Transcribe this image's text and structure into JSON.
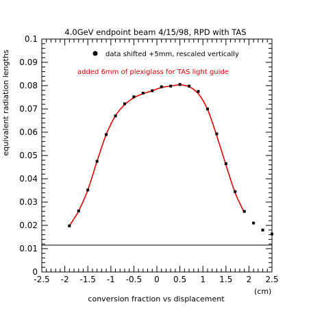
{
  "chart_data": {
    "type": "scatter",
    "title": "4.0GeV endpoint beam 4/15/98, RPD with TAS",
    "xlabel": "conversion fraction vs displacement",
    "xunit": "(cm)",
    "ylabel": "equivalent radiation lengths",
    "xlim": [
      -2.5,
      2.5
    ],
    "ylim": [
      0,
      0.1
    ],
    "x_ticks": [
      "-2.5",
      "-2",
      "-1.5",
      "-1",
      "-0.5",
      "0",
      "0.5",
      "1",
      "1.5",
      "2",
      "2.5"
    ],
    "y_ticks": [
      "0",
      "0.01",
      "0.02",
      "0.03",
      "0.04",
      "0.05",
      "0.06",
      "0.07",
      "0.08",
      "0.09",
      "0.1"
    ],
    "legend": {
      "label": "data shifted +5mm, rescaled vertically",
      "position": "top-right"
    },
    "annotation": "added 6mm of plexiglass for TAS light guide",
    "reference_line_y": 0.0115,
    "colors": {
      "data": "#000000",
      "fit": "#e00000",
      "axis": "#000000"
    },
    "series": [
      {
        "style": "markers",
        "x": [
          -1.9,
          -1.7,
          -1.5,
          -1.3,
          -1.1,
          -0.9,
          -0.7,
          -0.5,
          -0.3,
          -0.1,
          0.1,
          0.3,
          0.5,
          0.7,
          0.9,
          1.1,
          1.3,
          1.5,
          1.7,
          1.9,
          2.1,
          2.3,
          2.5
        ],
        "y": [
          0.0198,
          0.0262,
          0.0352,
          0.0475,
          0.059,
          0.067,
          0.0722,
          0.0752,
          0.0768,
          0.0778,
          0.0795,
          0.0798,
          0.0805,
          0.0798,
          0.0775,
          0.07,
          0.0593,
          0.0465,
          0.0345,
          0.026,
          0.021,
          0.018,
          0.0163
        ]
      },
      {
        "style": "line",
        "x": [
          -1.9,
          -1.7,
          -1.5,
          -1.3,
          -1.1,
          -0.9,
          -0.7,
          -0.5,
          -0.3,
          -0.1,
          0.1,
          0.3,
          0.5,
          0.7,
          0.9,
          1.1,
          1.3,
          1.5,
          1.7,
          1.9
        ],
        "y": [
          0.0198,
          0.0262,
          0.0352,
          0.0475,
          0.059,
          0.067,
          0.0718,
          0.0748,
          0.0765,
          0.0778,
          0.0792,
          0.0798,
          0.0803,
          0.0795,
          0.0765,
          0.0698,
          0.0585,
          0.046,
          0.034,
          0.0255
        ]
      }
    ]
  }
}
